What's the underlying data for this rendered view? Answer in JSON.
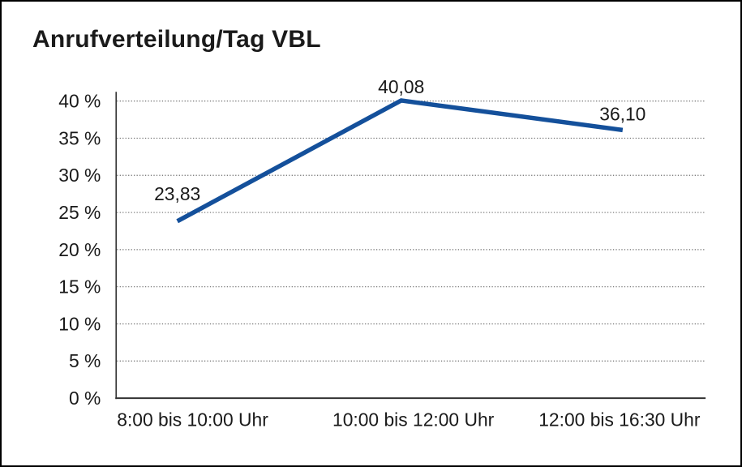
{
  "page": {
    "background_color": "#ffffff",
    "frame_border_color": "#000000"
  },
  "chart_data": {
    "type": "line",
    "title": "Anrufverteilung/Tag VBL",
    "categories": [
      "8:00 bis 10:00 Uhr",
      "10:00 bis 12:00 Uhr",
      "12:00 bis 16:30 Uhr"
    ],
    "values": [
      23.83,
      40.08,
      36.1
    ],
    "value_labels": [
      "23,83",
      "40,08",
      "36,10"
    ],
    "xlabel": "",
    "ylabel": "",
    "ylim": [
      0,
      40
    ],
    "y_ticks": [
      {
        "value": 0,
        "label": "0 %"
      },
      {
        "value": 5,
        "label": "5 %"
      },
      {
        "value": 10,
        "label": "10 %"
      },
      {
        "value": 15,
        "label": "15 %"
      },
      {
        "value": 20,
        "label": "20 %"
      },
      {
        "value": 25,
        "label": "25 %"
      },
      {
        "value": 30,
        "label": "30 %"
      },
      {
        "value": 35,
        "label": "35 %"
      },
      {
        "value": 40,
        "label": "40 %"
      }
    ],
    "grid": "horizontal-dotted",
    "legend": "none",
    "line_color": "#14509B",
    "axis_color": "#333333",
    "grid_color": "#6e6e6e",
    "text_color": "#1a1a1a"
  }
}
